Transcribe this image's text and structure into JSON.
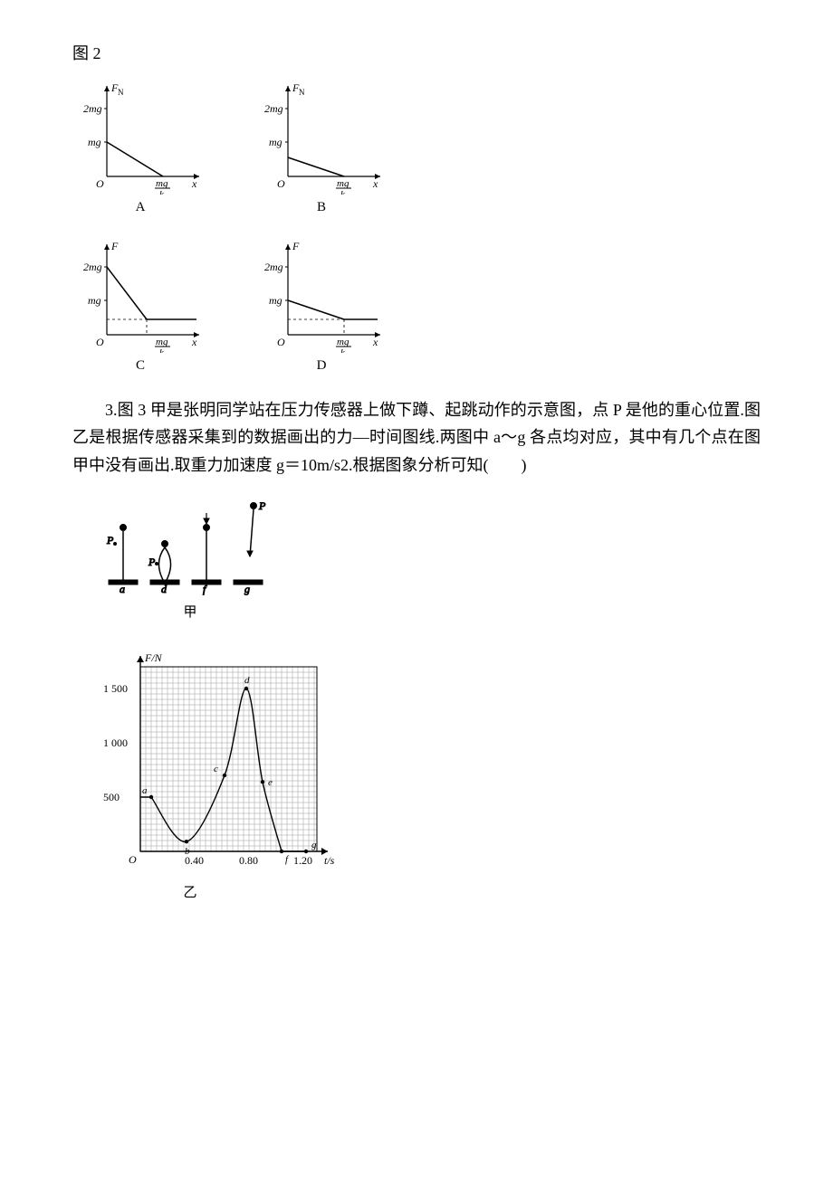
{
  "fig2_label": "图 2",
  "axis_y_label_FN": "F",
  "axis_y_label_FN_sub": "N",
  "axis_y_label_F": "F",
  "tick_2mg": "2mg",
  "tick_mg": "mg",
  "origin": "O",
  "x_tick_frac_top": "mg",
  "x_tick_frac_bot": "k",
  "x_label": "x",
  "cap_A": "A",
  "cap_B": "B",
  "cap_C": "C",
  "cap_D": "D",
  "q3_text": "3.图 3 甲是张明同学站在压力传感器上做下蹲、起跳动作的示意图，点 P 是他的重心位置.图乙是根据传感器采集到的数据画出的力—时间图线.两图中 a～g 各点均对应，其中有几个点在图甲中没有画出.取重力加速度 g＝10m/s2.根据图象分析可知(　　)",
  "P": "P",
  "stick_a": "a",
  "stick_d": "d",
  "stick_f": "f",
  "stick_g": "g",
  "stick_cap": "甲",
  "grid_ylabel": "F/N",
  "grid_y_1500": "1 500",
  "grid_y_1000": "1 000",
  "grid_y_500": "500",
  "grid_x_040": "0.40",
  "grid_x_080": "0.80",
  "grid_x_120": "1.20",
  "grid_xlabel": "t/s",
  "grid_cap": "乙",
  "pt_a": "a",
  "pt_b": "b",
  "pt_c": "c",
  "pt_d": "d",
  "pt_e": "e",
  "pt_f": "f",
  "pt_g": "g",
  "colors": {
    "axis": "#000000",
    "grid": "#9e9e9e",
    "curve": "#000000",
    "bg": "#ffffff"
  },
  "chart_AB": {
    "type": "line",
    "x_intercept_label": "mg/k",
    "A": {
      "y_intercept": "mg",
      "y_label": "F_N"
    },
    "B": {
      "y_intercept": "mg*0.55",
      "y_label": "F_N"
    }
  },
  "chart_CD": {
    "type": "line",
    "x_intercept_label": "mg/k",
    "C": {
      "y_intercept": "2mg",
      "plateau_from_x": "before mg/k",
      "plateau_y": "~0.45mg",
      "y_label": "F"
    },
    "D": {
      "y_intercept": "mg",
      "plateau_from_x": "at mg/k",
      "plateau_y": "~0.45mg",
      "y_label": "F"
    }
  },
  "force_time_curve": {
    "type": "line",
    "xlim": [
      0,
      1.3
    ],
    "ylim": [
      0,
      1700
    ],
    "xtick_step": 0.4,
    "ytick_step": 500,
    "minor_grid_step_x": 0.04,
    "minor_grid_step_y": 50,
    "points": {
      "a": {
        "t": 0.08,
        "F": 500
      },
      "b": {
        "t": 0.34,
        "F": 90
      },
      "c": {
        "t": 0.62,
        "F": 700
      },
      "d": {
        "t": 0.78,
        "F": 1500
      },
      "e": {
        "t": 0.9,
        "F": 640
      },
      "f": {
        "t": 1.04,
        "F": 0
      },
      "g": {
        "t": 1.22,
        "F": 0
      }
    },
    "curve_color": "#000000",
    "grid_color": "#9e9e9e",
    "bg": "#ffffff",
    "line_width": 1.4
  }
}
